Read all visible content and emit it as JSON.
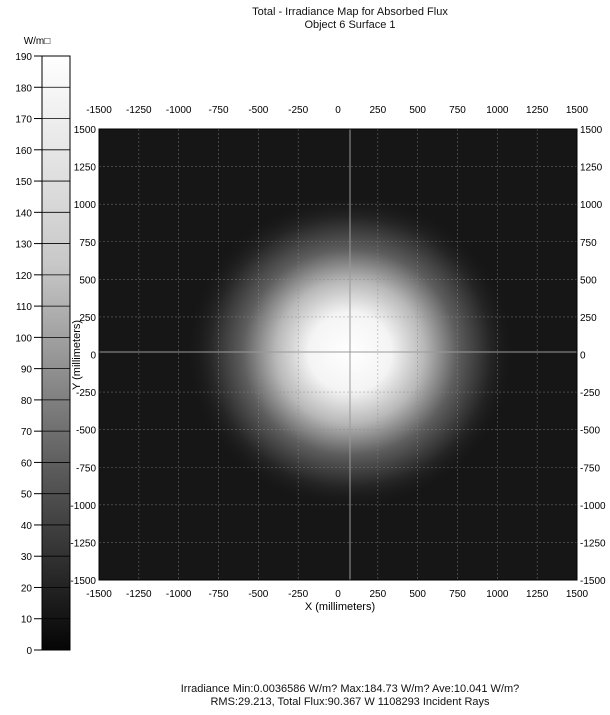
{
  "chart_data": {
    "type": "heatmap",
    "title": "Total - Irradiance Map for Absorbed Flux",
    "subtitle": "Object 6 Surface 1",
    "xlabel": "X (millimeters)",
    "ylabel": "Y (millimeters)",
    "xlim": [
      -1500,
      1500
    ],
    "ylim": [
      -1500,
      1500
    ],
    "x_ticks": [
      "-1500",
      "-1250",
      "-1000",
      "-750",
      "-500",
      "-250",
      "0",
      "250",
      "500",
      "750",
      "1000",
      "1250",
      "1500"
    ],
    "y_ticks": [
      "1500",
      "1250",
      "1000",
      "750",
      "500",
      "250",
      "0",
      "-250",
      "-500",
      "-750",
      "-1000",
      "-1250",
      "-1500"
    ],
    "grid": true,
    "colorbar": {
      "unit": "W/m□",
      "min": 0,
      "max": 190,
      "ticks": [
        "190",
        "180",
        "170",
        "160",
        "150",
        "140",
        "130",
        "120",
        "110",
        "100",
        "90",
        "80",
        "70",
        "60",
        "50",
        "40",
        "30",
        "20",
        "10",
        "0"
      ]
    },
    "spot": {
      "center_x": 0,
      "center_y": 0,
      "peak": 184.73
    },
    "stats": {
      "line1": "Irradiance Min:0.0036586 W/m? Max:184.73 W/m? Ave:10.041 W/m?",
      "line2": "RMS:29.213, Total Flux:90.367 W 1108293 Incident Rays"
    }
  }
}
